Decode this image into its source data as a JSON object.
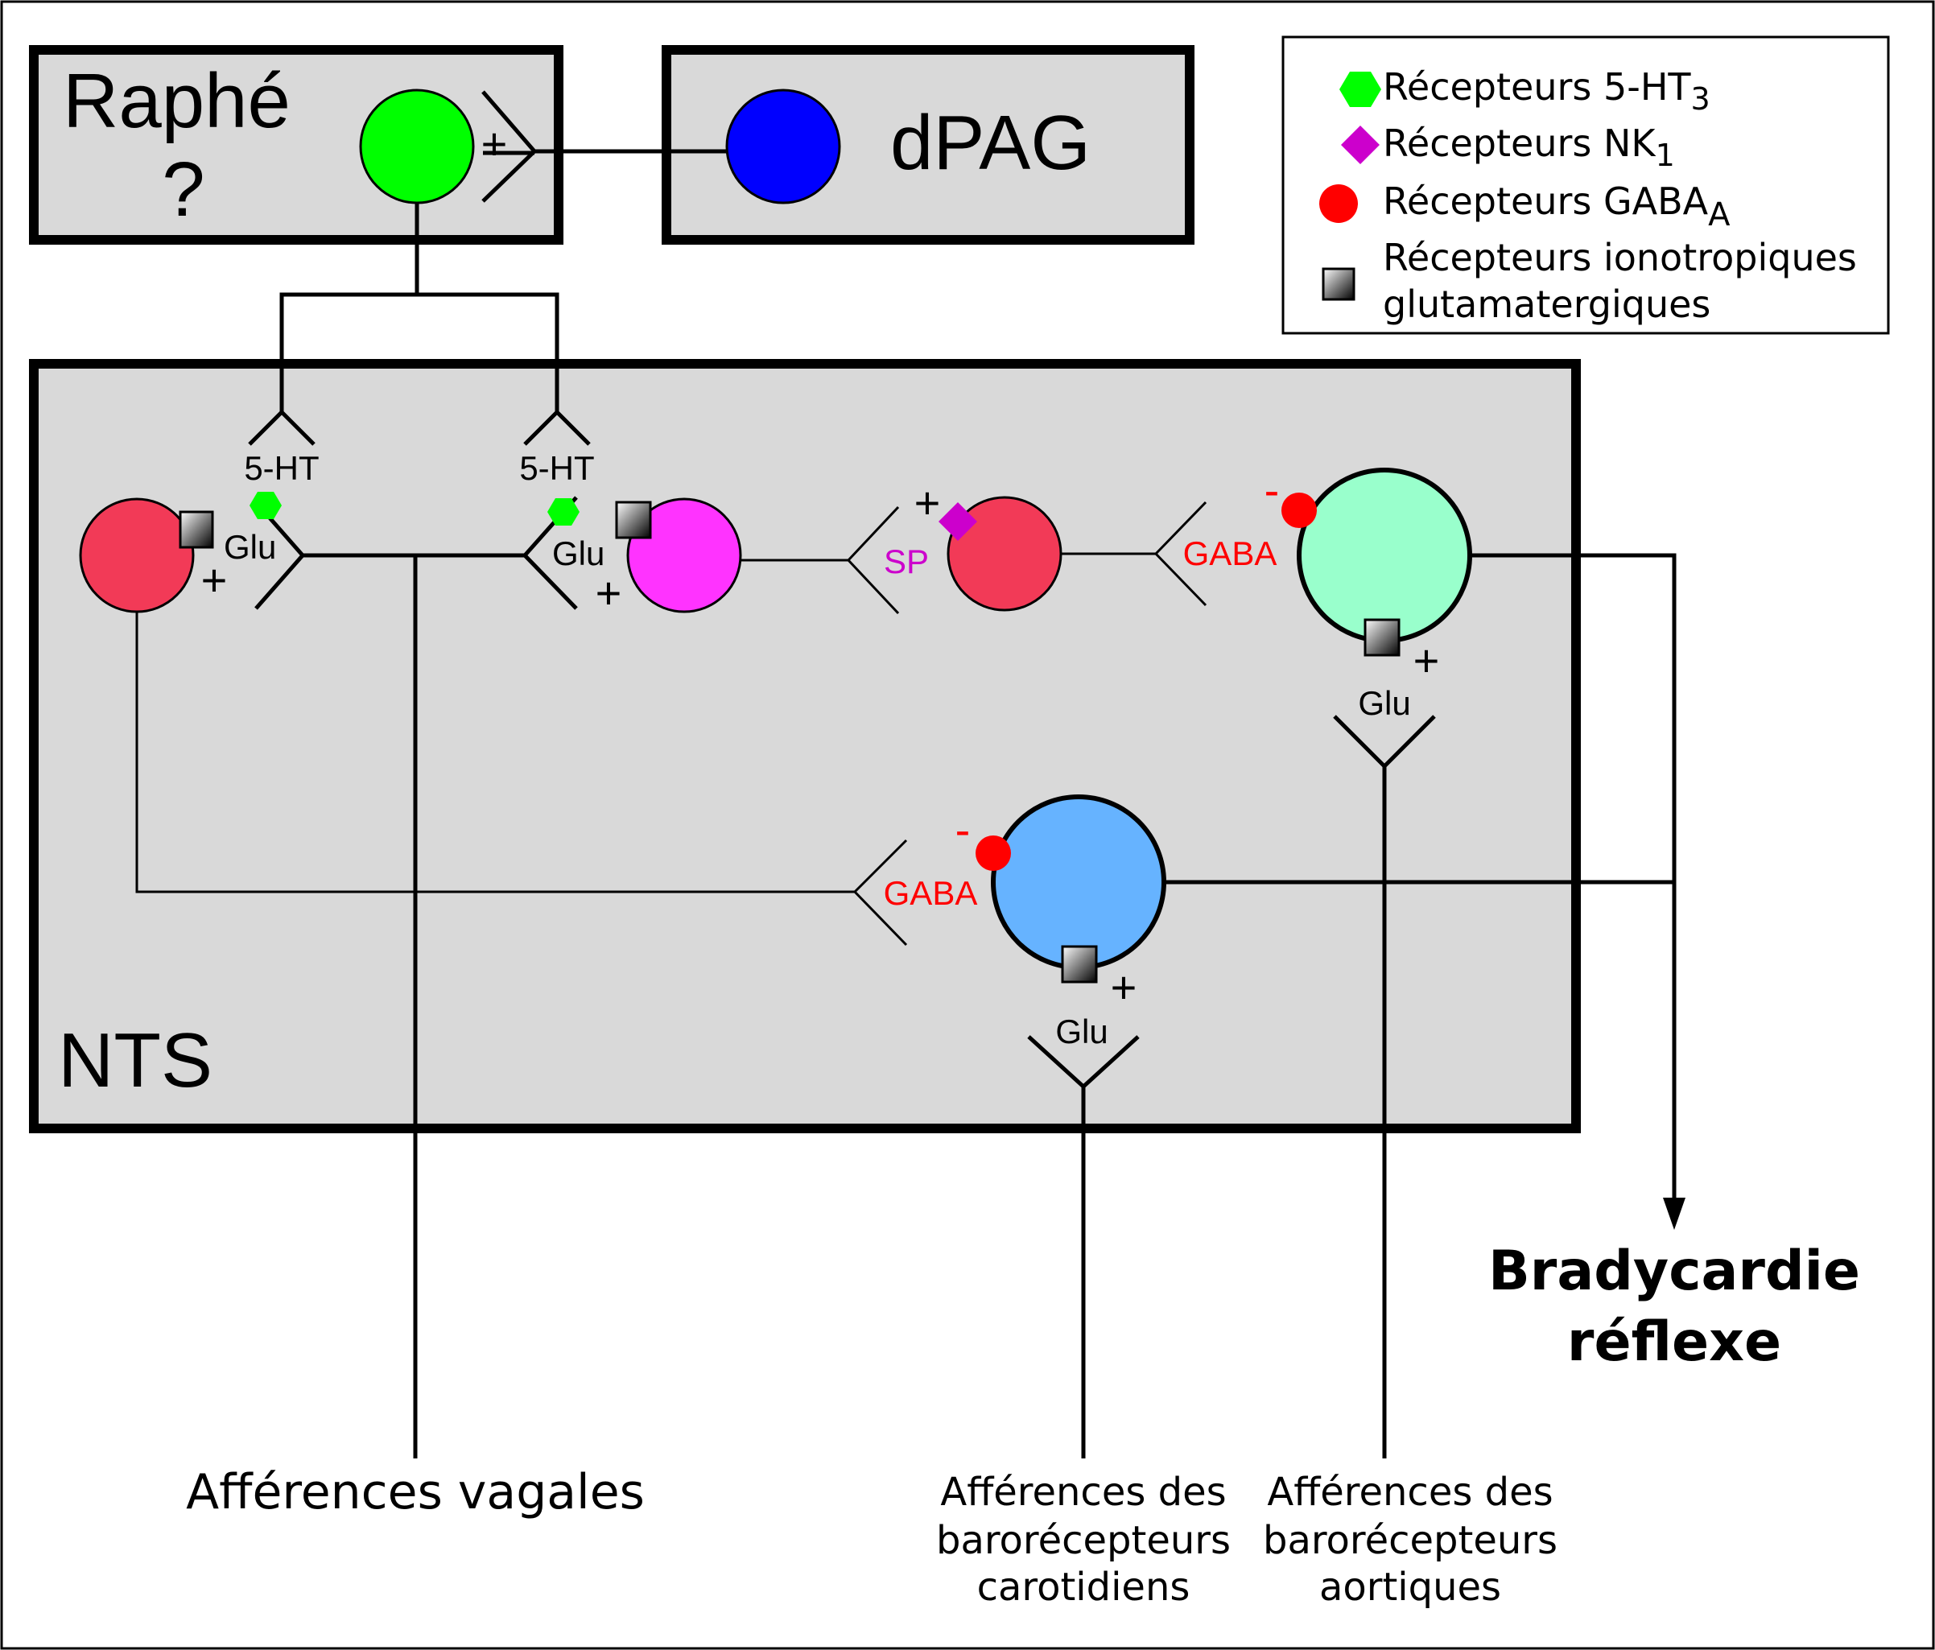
{
  "regions": {
    "raphe": {
      "title": "Raphé",
      "question": "?"
    },
    "dpag": {
      "title": "dPAG"
    },
    "nts": {
      "title": "NTS"
    }
  },
  "legend": {
    "items": [
      {
        "symbol": "green-hexagon",
        "color": "#00ff00",
        "text": "Récepteurs 5-HT",
        "sub": "3"
      },
      {
        "symbol": "magenta-diamond",
        "color": "#cc00cc",
        "text": "Récepteurs NK",
        "sub": "1"
      },
      {
        "symbol": "red-circle",
        "color": "#ff0000",
        "text": "Récepteurs GABA",
        "sub": "A"
      },
      {
        "symbol": "gradient-square",
        "color": "#000000",
        "text": "Récepteurs ionotropiques",
        "text2": "glutamatergiques"
      }
    ]
  },
  "labels": {
    "plus": "+",
    "minus": "-",
    "ht5": "5-HT",
    "glu": "Glu",
    "sp": "SP",
    "gaba": "GABA"
  },
  "colors": {
    "raphe_neuron": "#00ff00",
    "dpag_neuron": "#0000ff",
    "nts_neuron_red": "#f23a57",
    "nts_neuron_magenta": "#ff33ff",
    "nts_neuron_mint": "#99ffcc",
    "nts_neuron_blue": "#66b3ff",
    "box_fill": "#d9d9d9",
    "inhibitory_text": "#ff0000",
    "sp_text": "#cc00cc"
  },
  "outputs": {
    "bradycardie_line1": "Bradycardie",
    "bradycardie_line2": "réflexe"
  },
  "inputs": {
    "vagal": "Afférences vagales",
    "carotid": [
      "Afférences des",
      "barorécepteurs",
      "carotidiens"
    ],
    "aortic": [
      "Afférences des",
      "barorécepteurs",
      "aortiques"
    ]
  }
}
